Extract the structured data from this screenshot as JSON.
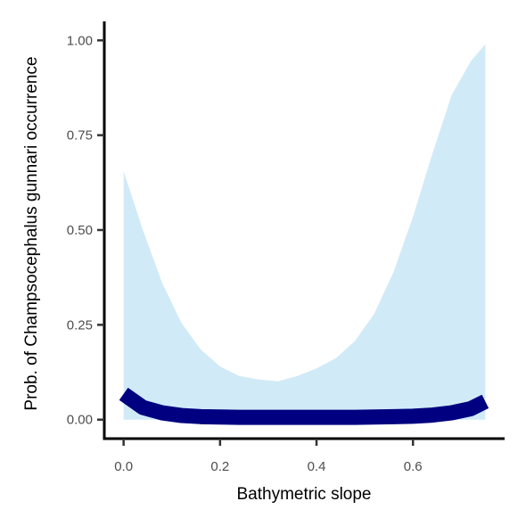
{
  "chart_data": {
    "type": "line",
    "xlabel": "Bathymetric slope",
    "ylabel": "Prob. of  Champsocephalus gunnari  occurrence",
    "xlim": [
      -0.04,
      0.79
    ],
    "ylim": [
      -0.05,
      1.05
    ],
    "x_ticks": [
      0.0,
      0.2,
      0.4,
      0.6
    ],
    "x_tick_labels": [
      "0.0",
      "0.2",
      "0.4",
      "0.6"
    ],
    "y_ticks": [
      0.0,
      0.25,
      0.5,
      0.75,
      1.0
    ],
    "y_tick_labels": [
      "0.00",
      "0.25",
      "0.50",
      "0.75",
      "1.00"
    ],
    "grid": false,
    "legend": "none",
    "colors": {
      "line": "#000080",
      "ribbon": "#d1eaf7",
      "axis": "#000000",
      "tick_text": "#4d4d4d"
    },
    "series": [
      {
        "x": [
          0.0,
          0.04,
          0.08,
          0.12,
          0.16,
          0.2,
          0.24,
          0.28,
          0.32,
          0.36,
          0.4,
          0.44,
          0.48,
          0.52,
          0.56,
          0.6,
          0.64,
          0.68,
          0.72,
          0.75
        ],
        "y": [
          0.068,
          0.032,
          0.018,
          0.011,
          0.008,
          0.007,
          0.006,
          0.006,
          0.006,
          0.006,
          0.006,
          0.006,
          0.006,
          0.007,
          0.008,
          0.009,
          0.012,
          0.018,
          0.029,
          0.048
        ],
        "lower": [
          0.0,
          0.0,
          0.0,
          0.0,
          0.0,
          0.0,
          0.0,
          0.0,
          0.0,
          0.0,
          0.0,
          0.0,
          0.0,
          0.0,
          0.0,
          0.0,
          0.0,
          0.0,
          0.0,
          0.0
        ],
        "upper": [
          0.655,
          0.5,
          0.36,
          0.255,
          0.185,
          0.14,
          0.115,
          0.106,
          0.101,
          0.115,
          0.135,
          0.162,
          0.208,
          0.28,
          0.39,
          0.535,
          0.7,
          0.855,
          0.945,
          0.99
        ]
      }
    ]
  }
}
